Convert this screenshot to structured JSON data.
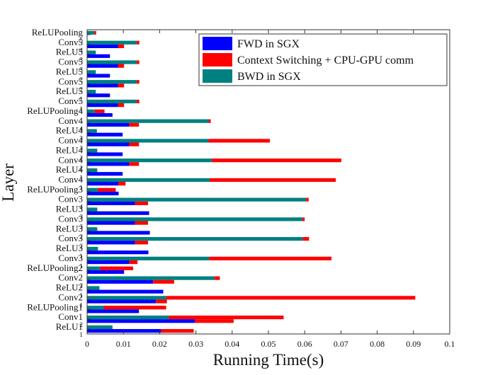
{
  "chart_data": {
    "type": "bar",
    "orientation": "horizontal",
    "xlabel": "Running Time(s)",
    "ylabel": "Layer",
    "xlim": [
      0,
      0.1
    ],
    "xticks": [
      "0",
      "0.01",
      "0.02",
      "0.03",
      "0.04",
      "0.05",
      "0.06",
      "0.07",
      "0.08",
      "0.09",
      "0.1"
    ],
    "legend_position": "top-right",
    "colors": {
      "fwd": "#0000ff",
      "ctx": "#ff0000",
      "bwd": "#008080"
    },
    "series": [
      {
        "key": "fwd",
        "name": "FWD in SGX"
      },
      {
        "key": "ctx",
        "name": "Context Switching + CPU-GPU comm"
      },
      {
        "key": "bwd",
        "name": "BWD in SGX"
      }
    ],
    "layers": [
      {
        "name": "ReLUPooling",
        "sub": "5",
        "fwd_total": null,
        "bwd_total": 0.0025
      },
      {
        "name": "Conv5",
        "sub": "4",
        "fwd_total": 0.0102,
        "bwd_total": 0.0144
      },
      {
        "name": "ReLU5",
        "sub": "3",
        "fwd_total": 0.0063,
        "bwd_total": 0.0024
      },
      {
        "name": "Conv5",
        "sub": "3",
        "fwd_total": 0.0102,
        "bwd_total": 0.0144
      },
      {
        "name": "ReLU5",
        "sub": "2",
        "fwd_total": 0.0063,
        "bwd_total": 0.0024
      },
      {
        "name": "Conv5",
        "sub": "2",
        "fwd_total": 0.0102,
        "bwd_total": 0.0144
      },
      {
        "name": "ReLU5",
        "sub": "1",
        "fwd_total": 0.0063,
        "bwd_total": 0.0024
      },
      {
        "name": "Conv5",
        "sub": "1",
        "fwd_total": 0.0102,
        "bwd_total": 0.0144
      },
      {
        "name": "ReLUPooling4",
        "sub": "",
        "fwd_total": 0.007,
        "bwd_total": 0.0048
      },
      {
        "name": "Conv4",
        "sub": "4",
        "fwd_total": 0.0143,
        "bwd_total": 0.0341
      },
      {
        "name": "ReLU4",
        "sub": "3",
        "fwd_total": 0.0098,
        "bwd_total": 0.0027
      },
      {
        "name": "Conv4",
        "sub": "3",
        "fwd_total": 0.0143,
        "bwd_total": 0.0504
      },
      {
        "name": "ReLU4",
        "sub": "2",
        "fwd_total": 0.0098,
        "bwd_total": 0.0028
      },
      {
        "name": "Conv4",
        "sub": "2",
        "fwd_total": 0.0143,
        "bwd_total": 0.0701
      },
      {
        "name": "ReLU4",
        "sub": "1",
        "fwd_total": 0.0098,
        "bwd_total": 0.0028
      },
      {
        "name": "Conv4",
        "sub": "1",
        "fwd_total": 0.0106,
        "bwd_total": 0.0686
      },
      {
        "name": "ReLUPooling3",
        "sub": "",
        "fwd_total": 0.0087,
        "bwd_total": 0.0079
      },
      {
        "name": "Conv3",
        "sub": "4",
        "fwd_total": 0.0168,
        "bwd_total": 0.0611
      },
      {
        "name": "ReLU3",
        "sub": "3",
        "fwd_total": 0.0171,
        "bwd_total": 0.0028
      },
      {
        "name": "Conv3",
        "sub": "3",
        "fwd_total": 0.0168,
        "bwd_total": 0.06
      },
      {
        "name": "ReLU3",
        "sub": "2",
        "fwd_total": 0.0173,
        "bwd_total": 0.0028
      },
      {
        "name": "Conv3",
        "sub": "2",
        "fwd_total": 0.0168,
        "bwd_total": 0.0612
      },
      {
        "name": "ReLU3",
        "sub": "1",
        "fwd_total": 0.0169,
        "bwd_total": 0.003
      },
      {
        "name": "Conv3",
        "sub": "1",
        "fwd_total": 0.0139,
        "bwd_total": 0.0674
      },
      {
        "name": "ReLUPooling2",
        "sub": "",
        "fwd_total": 0.0102,
        "bwd_total": 0.0127
      },
      {
        "name": "Conv2",
        "sub": "2",
        "fwd_total": 0.024,
        "bwd_total": 0.0366
      },
      {
        "name": "ReLU2",
        "sub": "1",
        "fwd_total": 0.021,
        "bwd_total": 0.0034
      },
      {
        "name": "Conv2",
        "sub": "1",
        "fwd_total": 0.022,
        "bwd_total": 0.0905
      },
      {
        "name": "ReLUPooling1",
        "sub": "",
        "fwd_total": 0.0143,
        "bwd_total": 0.0218
      },
      {
        "name": "Conv1",
        "sub": "2",
        "fwd_total": 0.0404,
        "bwd_total": 0.0542
      },
      {
        "name": "ReLU1",
        "sub": "1",
        "fwd_total": 0.0294,
        "bwd_total": 0.007
      }
    ],
    "stacks": [
      {
        "layer": 0,
        "fwd": 0.0,
        "fwd_ctx": 0.0,
        "bwd": 0.002,
        "bwd_ctx": 0.0005
      },
      {
        "layer": 1,
        "fwd": 0.0085,
        "fwd_ctx": 0.0017,
        "bwd": 0.0137,
        "bwd_ctx": 0.0007
      },
      {
        "layer": 2,
        "fwd": 0.0063,
        "fwd_ctx": 0.0,
        "bwd": 0.0024,
        "bwd_ctx": 0.0
      },
      {
        "layer": 3,
        "fwd": 0.0085,
        "fwd_ctx": 0.0017,
        "bwd": 0.0137,
        "bwd_ctx": 0.0007
      },
      {
        "layer": 4,
        "fwd": 0.0063,
        "fwd_ctx": 0.0,
        "bwd": 0.0024,
        "bwd_ctx": 0.0
      },
      {
        "layer": 5,
        "fwd": 0.0085,
        "fwd_ctx": 0.0017,
        "bwd": 0.0137,
        "bwd_ctx": 0.0007
      },
      {
        "layer": 6,
        "fwd": 0.0063,
        "fwd_ctx": 0.0,
        "bwd": 0.0024,
        "bwd_ctx": 0.0
      },
      {
        "layer": 7,
        "fwd": 0.0085,
        "fwd_ctx": 0.0017,
        "bwd": 0.0137,
        "bwd_ctx": 0.0007
      },
      {
        "layer": 8,
        "fwd": 0.007,
        "fwd_ctx": 0.0,
        "bwd": 0.0021,
        "bwd_ctx": 0.0027
      },
      {
        "layer": 9,
        "fwd": 0.0116,
        "fwd_ctx": 0.0027,
        "bwd": 0.0335,
        "bwd_ctx": 0.0006
      },
      {
        "layer": 10,
        "fwd": 0.0098,
        "fwd_ctx": 0.0,
        "bwd": 0.0027,
        "bwd_ctx": 0.0
      },
      {
        "layer": 11,
        "fwd": 0.0116,
        "fwd_ctx": 0.0027,
        "bwd": 0.0335,
        "bwd_ctx": 0.0169
      },
      {
        "layer": 12,
        "fwd": 0.0098,
        "fwd_ctx": 0.0,
        "bwd": 0.0028,
        "bwd_ctx": 0.0
      },
      {
        "layer": 13,
        "fwd": 0.0116,
        "fwd_ctx": 0.0027,
        "bwd": 0.0344,
        "bwd_ctx": 0.0357
      },
      {
        "layer": 14,
        "fwd": 0.0098,
        "fwd_ctx": 0.0,
        "bwd": 0.0028,
        "bwd_ctx": 0.0
      },
      {
        "layer": 15,
        "fwd": 0.0086,
        "fwd_ctx": 0.002,
        "bwd": 0.0338,
        "bwd_ctx": 0.0348
      },
      {
        "layer": 16,
        "fwd": 0.0087,
        "fwd_ctx": 0.0,
        "bwd": 0.0029,
        "bwd_ctx": 0.005
      },
      {
        "layer": 17,
        "fwd": 0.0132,
        "fwd_ctx": 0.0036,
        "bwd": 0.0604,
        "bwd_ctx": 0.0007
      },
      {
        "layer": 18,
        "fwd": 0.0171,
        "fwd_ctx": 0.0,
        "bwd": 0.0028,
        "bwd_ctx": 0.0
      },
      {
        "layer": 19,
        "fwd": 0.0132,
        "fwd_ctx": 0.0036,
        "bwd": 0.0594,
        "bwd_ctx": 0.0006
      },
      {
        "layer": 20,
        "fwd": 0.0173,
        "fwd_ctx": 0.0,
        "bwd": 0.0028,
        "bwd_ctx": 0.0
      },
      {
        "layer": 21,
        "fwd": 0.0132,
        "fwd_ctx": 0.0036,
        "bwd": 0.0595,
        "bwd_ctx": 0.0017
      },
      {
        "layer": 22,
        "fwd": 0.0169,
        "fwd_ctx": 0.0,
        "bwd": 0.003,
        "bwd_ctx": 0.0
      },
      {
        "layer": 23,
        "fwd": 0.0116,
        "fwd_ctx": 0.0023,
        "bwd": 0.0337,
        "bwd_ctx": 0.0337
      },
      {
        "layer": 24,
        "fwd": 0.0102,
        "fwd_ctx": 0.0,
        "bwd": 0.0035,
        "bwd_ctx": 0.0092
      },
      {
        "layer": 25,
        "fwd": 0.0182,
        "fwd_ctx": 0.0058,
        "bwd": 0.0352,
        "bwd_ctx": 0.0014
      },
      {
        "layer": 26,
        "fwd": 0.021,
        "fwd_ctx": 0.0,
        "bwd": 0.0034,
        "bwd_ctx": 0.0
      },
      {
        "layer": 27,
        "fwd": 0.019,
        "fwd_ctx": 0.003,
        "bwd": 0.0218,
        "bwd_ctx": 0.0687
      },
      {
        "layer": 28,
        "fwd": 0.0143,
        "fwd_ctx": 0.0,
        "bwd": 0.0046,
        "bwd_ctx": 0.0172
      },
      {
        "layer": 29,
        "fwd": 0.0297,
        "fwd_ctx": 0.0107,
        "bwd": 0.0225,
        "bwd_ctx": 0.0317
      },
      {
        "layer": 30,
        "fwd": 0.0204,
        "fwd_ctx": 0.009,
        "bwd": 0.007,
        "bwd_ctx": 0.0
      }
    ]
  }
}
